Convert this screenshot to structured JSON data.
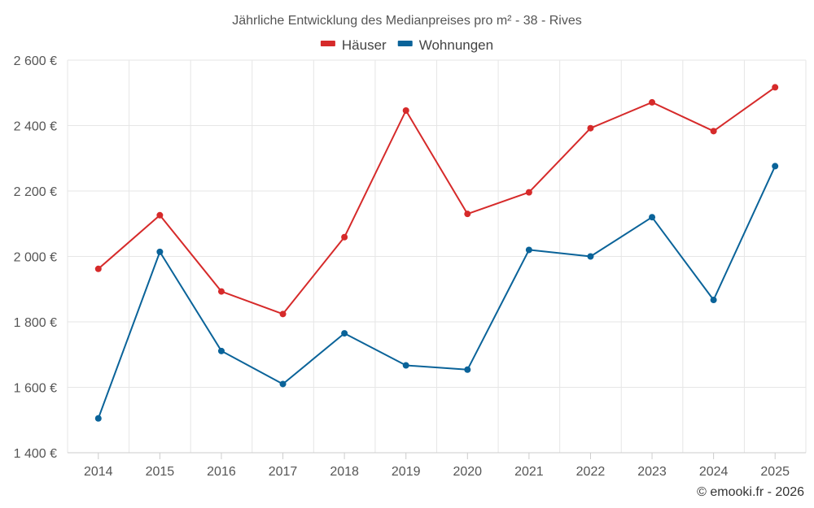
{
  "chart_data": {
    "type": "line",
    "title": "Jährliche Entwicklung des Medianpreises pro m² - 38 - Rives",
    "xlabel": "",
    "ylabel": "",
    "categories": [
      "2014",
      "2015",
      "2016",
      "2017",
      "2018",
      "2019",
      "2020",
      "2021",
      "2022",
      "2023",
      "2024",
      "2025"
    ],
    "ylim": [
      1400,
      2600
    ],
    "yticks": [
      1400,
      1600,
      1800,
      2000,
      2200,
      2400,
      2600
    ],
    "ytick_labels": [
      "1 400 €",
      "1 600 €",
      "1 800 €",
      "2 000 €",
      "2 200 €",
      "2 400 €",
      "2 600 €"
    ],
    "grid": true,
    "legend_position": "top-center",
    "series": [
      {
        "name": "Häuser",
        "color": "#d62a2a",
        "values": [
          1962,
          2126,
          1893,
          1824,
          2059,
          2446,
          2130,
          2196,
          2392,
          2471,
          2383,
          2517
        ]
      },
      {
        "name": "Wohnungen",
        "color": "#0a6399",
        "values": [
          1505,
          2014,
          1711,
          1610,
          1765,
          1667,
          1654,
          2020,
          2000,
          2120,
          1867,
          2276
        ]
      }
    ]
  },
  "credit": "© emooki.fr - 2026"
}
